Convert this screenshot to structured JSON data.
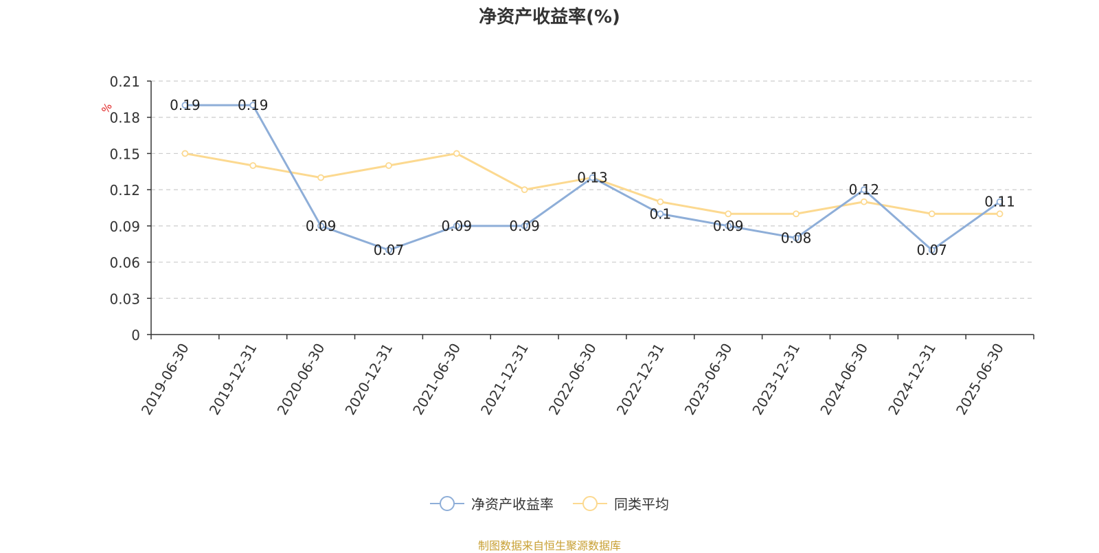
{
  "chart_data": {
    "type": "line",
    "title": "净资产收益率(%)",
    "ylabel": "%",
    "xlabel": "",
    "categories": [
      "2019-06-30",
      "2019-12-31",
      "2020-06-30",
      "2020-12-31",
      "2021-06-30",
      "2021-12-31",
      "2022-06-30",
      "2022-12-31",
      "2023-06-30",
      "2023-12-31",
      "2024-06-30",
      "2024-12-31",
      "2025-06-30"
    ],
    "ylim": [
      0,
      0.21
    ],
    "yticks": [
      "0",
      "0.03",
      "0.06",
      "0.09",
      "0.12",
      "0.15",
      "0.18",
      "0.21"
    ],
    "grid": true,
    "legend_position": "bottom-center",
    "series": [
      {
        "name": "净资产收益率",
        "color": "#8eaed8",
        "data_labels": true,
        "values": [
          0.19,
          0.19,
          0.09,
          0.07,
          0.09,
          0.09,
          0.13,
          0.1,
          0.09,
          0.08,
          0.12,
          0.07,
          0.11
        ],
        "labels": [
          "0.19",
          "0.19",
          "0.09",
          "0.07",
          "0.09",
          "0.09",
          "0.13",
          "0.1",
          "0.09",
          "0.08",
          "0.12",
          "0.07",
          "0.11"
        ]
      },
      {
        "name": "同类平均",
        "color": "#fcd990",
        "data_labels": false,
        "values": [
          0.15,
          0.14,
          0.13,
          0.14,
          0.15,
          0.12,
          0.13,
          0.11,
          0.1,
          0.1,
          0.11,
          0.1,
          0.1
        ]
      }
    ]
  },
  "footer": {
    "source": "制图数据来自恒生聚源数据库"
  }
}
